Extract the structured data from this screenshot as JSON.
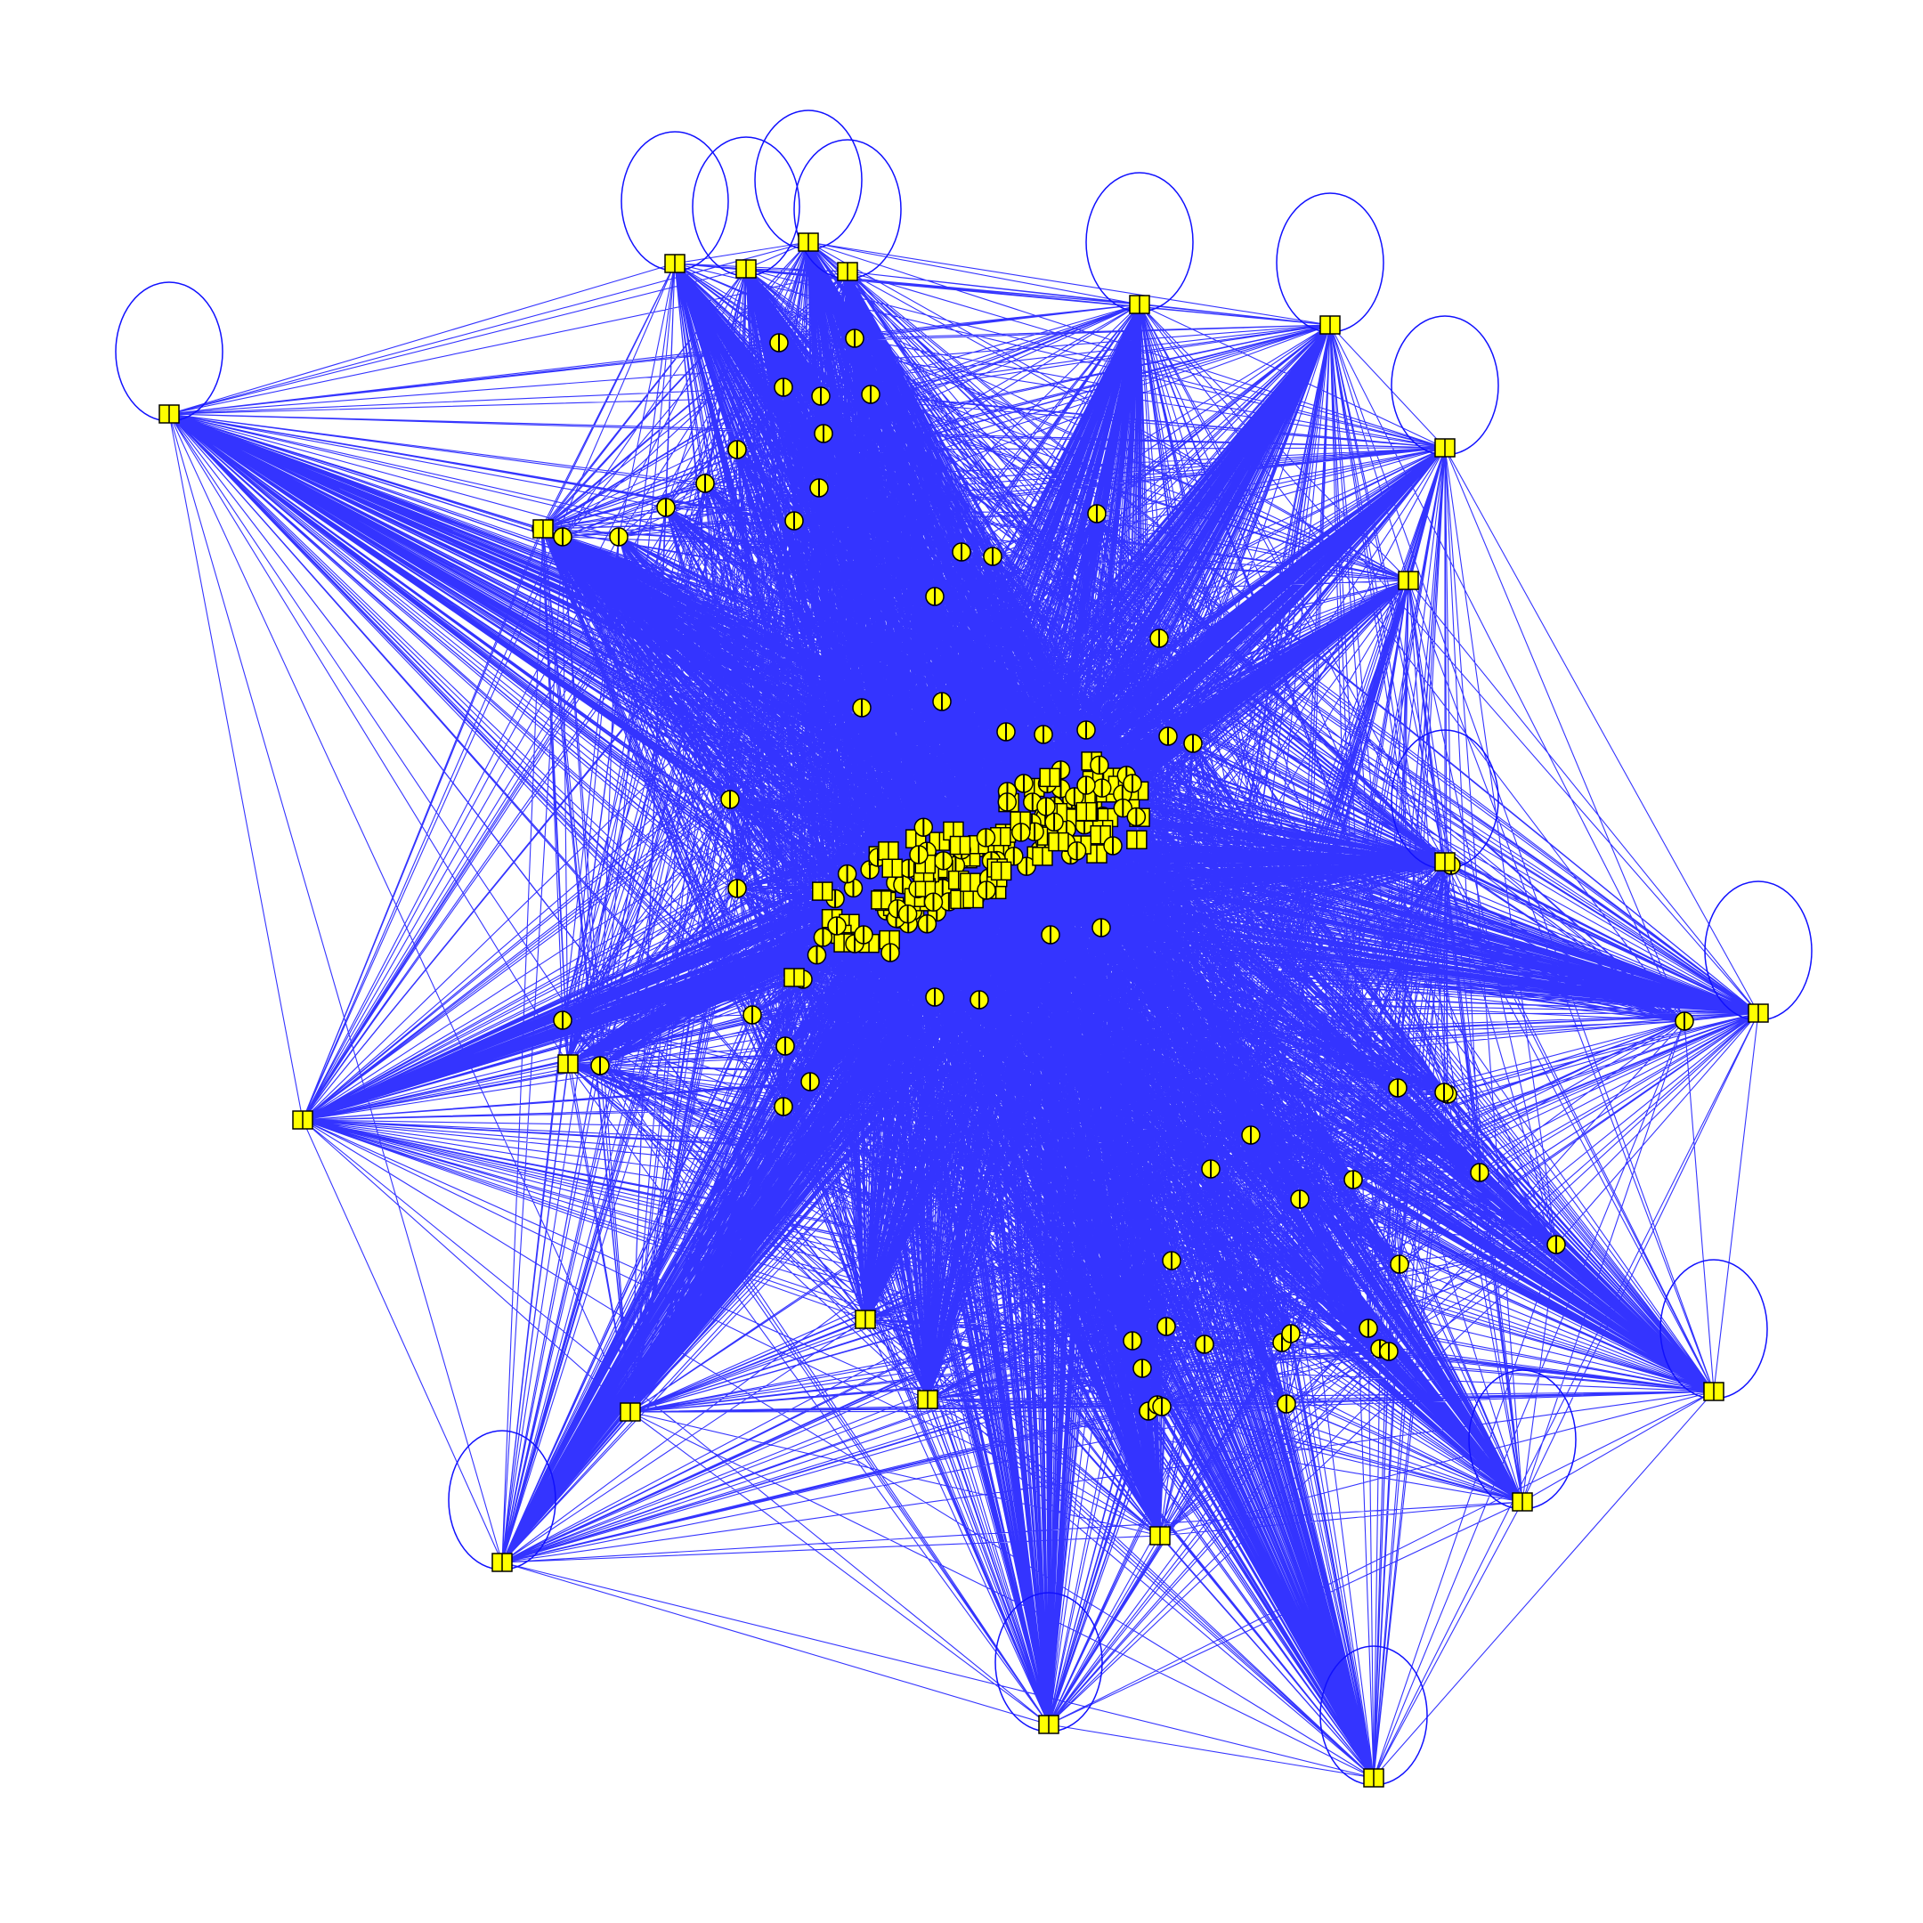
{
  "diagram": {
    "type": "network-graph",
    "style": {
      "edge_color": "#1010ff",
      "node_fill": "#ffff00",
      "node_stroke": "#000000",
      "background": "#ffffff"
    },
    "node_shapes": [
      "square",
      "circle"
    ],
    "hub_nodes": 24,
    "inner_nodes": 75,
    "cluster_nodes": 160,
    "self_loops": 15,
    "labels": []
  }
}
